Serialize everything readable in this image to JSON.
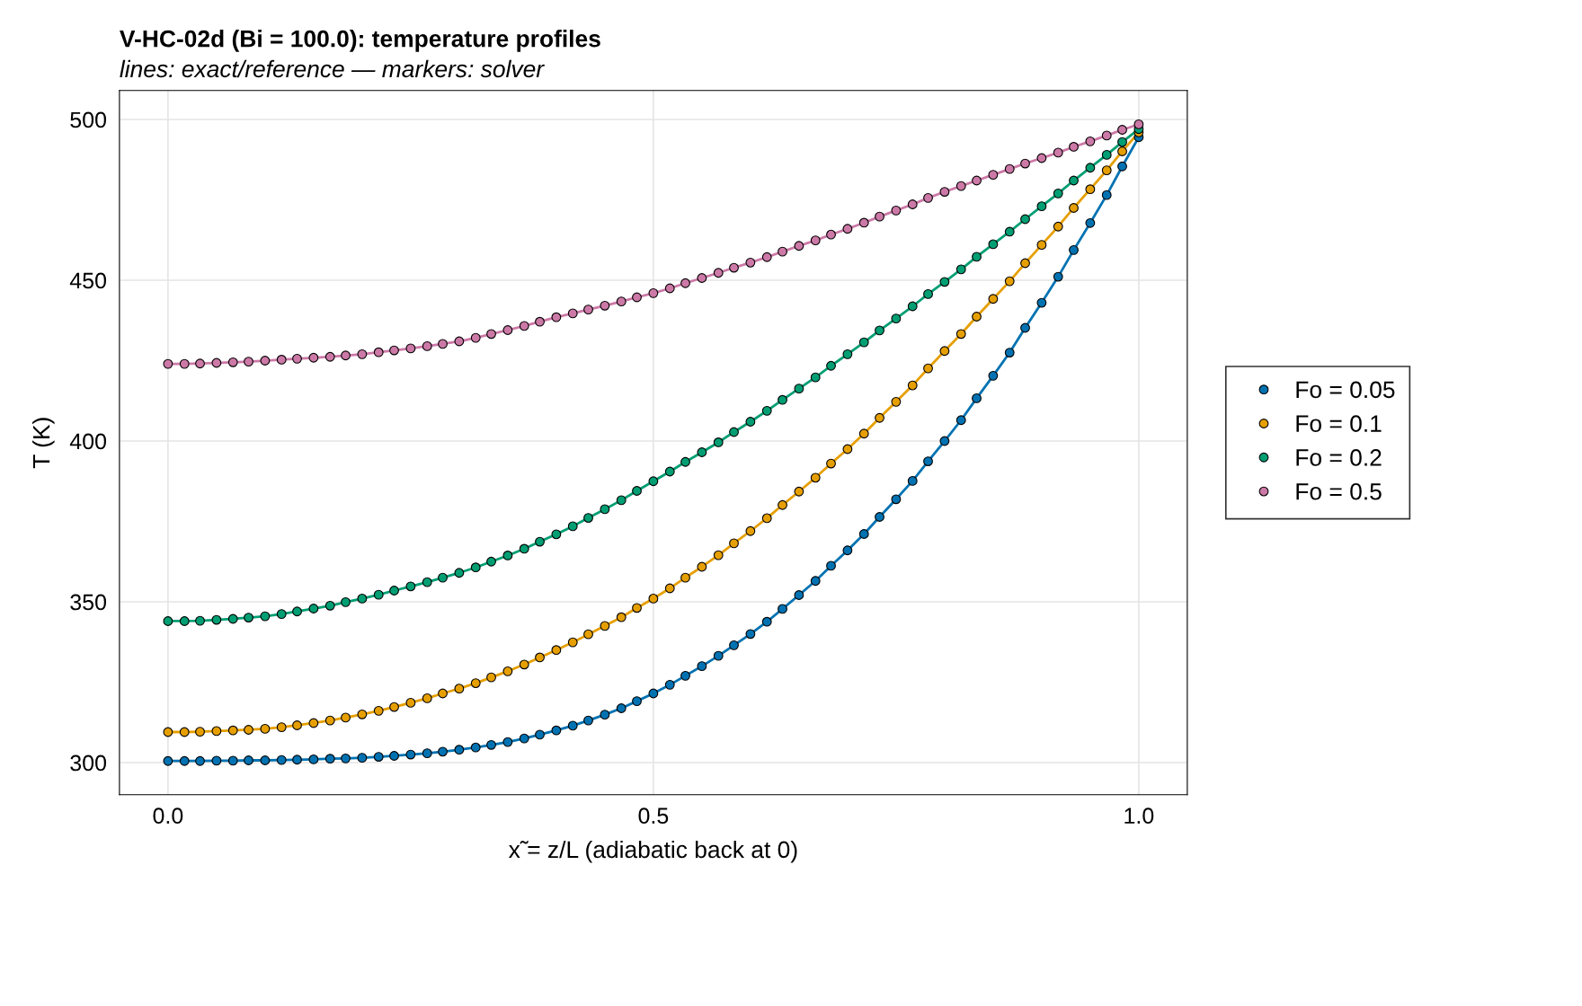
{
  "chart_data": {
    "type": "line",
    "title": "V-HC-02d (Bi = 100.0): temperature profiles",
    "subtitle": "lines: exact/reference — markers: solver",
    "xlabel": "x̃ = z/L (adiabatic back at 0)",
    "ylabel": "T (K)",
    "x": [
      0.0,
      0.017,
      0.033,
      0.05,
      0.067,
      0.083,
      0.1,
      0.117,
      0.133,
      0.15,
      0.167,
      0.183,
      0.2,
      0.217,
      0.233,
      0.25,
      0.267,
      0.283,
      0.3,
      0.317,
      0.333,
      0.35,
      0.367,
      0.383,
      0.4,
      0.417,
      0.433,
      0.45,
      0.467,
      0.483,
      0.5,
      0.517,
      0.533,
      0.55,
      0.567,
      0.583,
      0.6,
      0.617,
      0.633,
      0.65,
      0.667,
      0.683,
      0.7,
      0.717,
      0.733,
      0.75,
      0.767,
      0.783,
      0.8,
      0.817,
      0.833,
      0.85,
      0.867,
      0.883,
      0.9,
      0.917,
      0.933,
      0.95,
      0.967,
      0.983,
      1.0
    ],
    "series": [
      {
        "name": "Fo = 0.05",
        "color": "#0072b2",
        "values": [
          300.5,
          300.5,
          300.5,
          300.6,
          300.6,
          300.7,
          300.7,
          300.8,
          300.9,
          301.0,
          301.2,
          301.3,
          301.5,
          301.8,
          302.1,
          302.5,
          302.9,
          303.4,
          304.0,
          304.7,
          305.5,
          306.4,
          307.5,
          308.7,
          310.0,
          311.5,
          313.1,
          314.9,
          316.9,
          319.1,
          321.5,
          324.2,
          327.0,
          330.0,
          333.2,
          336.5,
          340.0,
          343.8,
          347.8,
          352.1,
          356.5,
          361.2,
          366.0,
          371.1,
          376.4,
          381.9,
          387.6,
          393.7,
          400.0,
          406.5,
          413.3,
          420.3,
          427.5,
          435.2,
          443.0,
          451.1,
          459.4,
          467.8,
          476.5,
          485.4,
          494.5
        ]
      },
      {
        "name": "Fo = 0.1",
        "color": "#e69f00",
        "values": [
          309.5,
          309.5,
          309.6,
          309.8,
          310.0,
          310.2,
          310.5,
          311.0,
          311.6,
          312.3,
          313.1,
          314.0,
          315.0,
          316.1,
          317.3,
          318.6,
          320.0,
          321.5,
          323.0,
          324.7,
          326.5,
          328.4,
          330.5,
          332.7,
          335.0,
          337.4,
          339.9,
          342.5,
          345.2,
          348.1,
          351.0,
          354.2,
          357.5,
          360.9,
          364.5,
          368.2,
          372.0,
          376.0,
          380.1,
          384.3,
          388.6,
          393.0,
          397.5,
          402.3,
          407.2,
          412.2,
          417.3,
          422.6,
          428.0,
          433.3,
          438.7,
          444.2,
          449.7,
          455.3,
          461.0,
          466.7,
          472.5,
          478.3,
          484.2,
          490.1,
          496.0
        ]
      },
      {
        "name": "Fo = 0.2",
        "color": "#009e73",
        "values": [
          344.0,
          344.0,
          344.1,
          344.4,
          344.7,
          345.1,
          345.5,
          346.2,
          347.0,
          347.9,
          348.8,
          349.9,
          351.0,
          352.2,
          353.5,
          354.8,
          356.1,
          357.5,
          359.0,
          360.7,
          362.5,
          364.4,
          366.5,
          368.7,
          371.0,
          373.5,
          376.1,
          378.8,
          381.6,
          384.5,
          387.5,
          390.5,
          393.5,
          396.5,
          399.6,
          402.8,
          406.0,
          409.4,
          412.8,
          416.3,
          419.8,
          423.4,
          427.0,
          430.7,
          434.4,
          438.1,
          441.9,
          445.7,
          449.5,
          453.4,
          457.3,
          461.2,
          465.1,
          469.0,
          473.0,
          477.0,
          481.0,
          485.0,
          489.0,
          493.0,
          497.0
        ]
      },
      {
        "name": "Fo = 0.5",
        "color": "#cc79a7",
        "values": [
          424.0,
          424.0,
          424.1,
          424.3,
          424.5,
          424.7,
          425.0,
          425.3,
          425.6,
          425.9,
          426.2,
          426.6,
          427.0,
          427.6,
          428.2,
          428.8,
          429.5,
          430.2,
          431.0,
          432.1,
          433.3,
          434.5,
          435.8,
          437.1,
          438.5,
          439.7,
          440.9,
          442.1,
          443.4,
          444.7,
          446.0,
          447.5,
          449.1,
          450.7,
          452.3,
          453.9,
          455.5,
          457.2,
          458.9,
          460.7,
          462.4,
          464.2,
          466.0,
          467.9,
          469.8,
          471.7,
          473.6,
          475.6,
          477.5,
          479.3,
          481.0,
          482.8,
          484.6,
          486.3,
          488.0,
          489.7,
          491.5,
          493.2,
          495.0,
          496.8,
          498.5
        ]
      }
    ],
    "xlim": [
      -0.05,
      1.05
    ],
    "xticks": [
      {
        "value": 0,
        "label": "0.0"
      },
      {
        "value": 0.5,
        "label": "0.5"
      },
      {
        "value": 1,
        "label": "1.0"
      }
    ],
    "ylim": [
      290,
      509
    ],
    "yticks": [
      300,
      350,
      400,
      450,
      500
    ],
    "grid": true,
    "legend": "right",
    "marker": "circle",
    "line_style": "solid"
  }
}
